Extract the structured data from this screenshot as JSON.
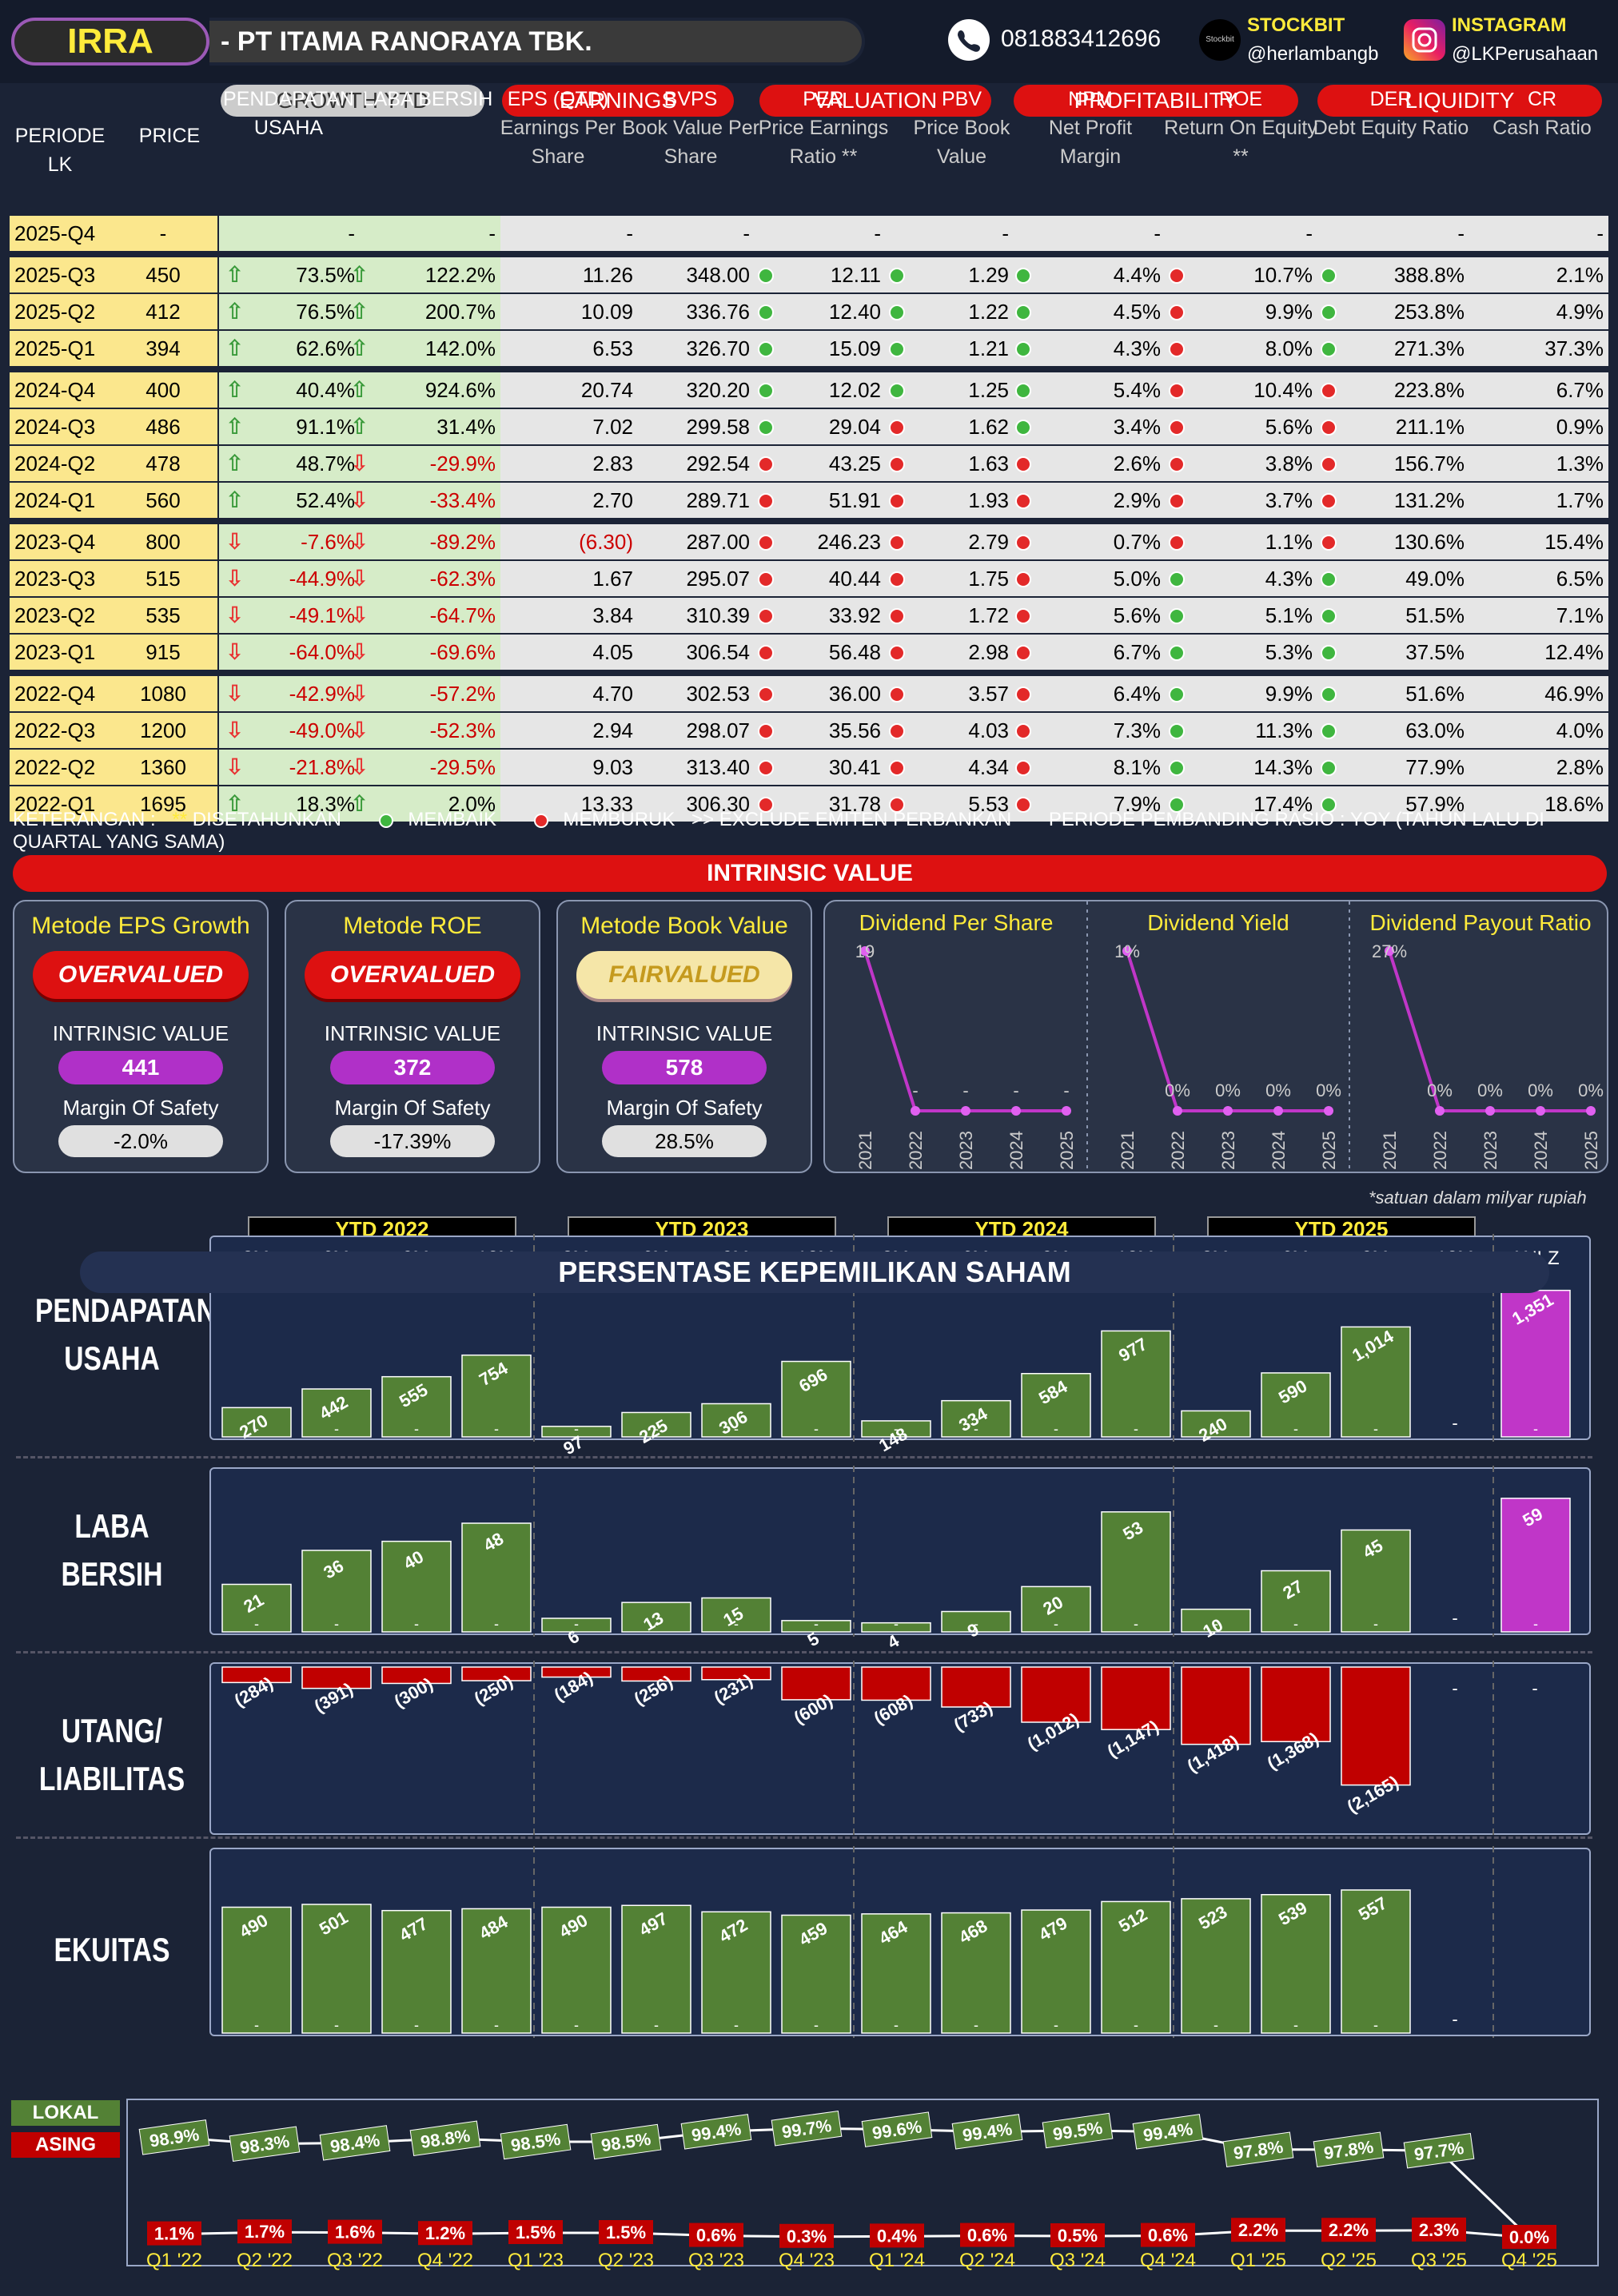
{
  "header": {
    "ticker": "IRRA",
    "company": "-  PT ITAMA RANORAYA TBK.",
    "phone": "081883412696",
    "stockbit_label": "STOCKBIT",
    "stockbit_handle": "@herlambangb",
    "stockbit_logo_text": "Stockbit",
    "instagram_label": "INSTAGRAM",
    "instagram_handle": "@LKPerusahaan"
  },
  "table": {
    "groups": {
      "growth": "GROWTH YTD",
      "earnings": "EARNINGS",
      "valuation": "VALUATION",
      "profitability": "PROFITABILITY",
      "liquidity": "LIQUIDITY"
    },
    "cols": {
      "periode": "PERIODE LK",
      "price": "PRICE",
      "pend": "PENDAPATAN USAHA",
      "laba": "LABA BERSIH",
      "eps": "EPS (QTD)",
      "eps_sub": "Earnings Per Share",
      "bvps": "BVPS",
      "bvps_sub": "Book Value Per Share",
      "per": "PER",
      "per_sub": "Price Earnings Ratio **",
      "pbv": "PBV",
      "pbv_sub": "Price Book Value",
      "npm": "NPM",
      "npm_sub": "Net Profit Margin",
      "roe": "ROE",
      "roe_sub": "Return On Equity **",
      "der": "DER",
      "der_sub": "Debt Equity Ratio",
      "cr": "CR",
      "cr_sub": "Cash Ratio"
    },
    "rows": [
      {
        "p": "2025-Q4",
        "price": "-",
        "pend": "-",
        "laba": "-",
        "eps": "-",
        "bvps": "-",
        "per": "-",
        "pbv": "-",
        "npm": "-",
        "roe": "-",
        "der": "-",
        "cr": "-"
      },
      {
        "p": "2025-Q3",
        "price": "450",
        "pend": "73.5%",
        "pa": "up",
        "laba": "122.2%",
        "la": "up",
        "eps": "11.26",
        "bvps": "348.00",
        "per": "12.11",
        "pd": "g",
        "pbv": "1.29",
        "bd": "g",
        "npm": "4.4%",
        "nd": "g",
        "roe": "10.7%",
        "rd": "r",
        "der": "388.8%",
        "dd": "g",
        "cr": "2.1%"
      },
      {
        "p": "2025-Q2",
        "price": "412",
        "pend": "76.5%",
        "pa": "up",
        "laba": "200.7%",
        "la": "up",
        "eps": "10.09",
        "bvps": "336.76",
        "per": "12.40",
        "pd": "g",
        "pbv": "1.22",
        "bd": "g",
        "npm": "4.5%",
        "nd": "g",
        "roe": "9.9%",
        "rd": "r",
        "der": "253.8%",
        "dd": "g",
        "cr": "4.9%"
      },
      {
        "p": "2025-Q1",
        "price": "394",
        "pend": "62.6%",
        "pa": "up",
        "laba": "142.0%",
        "la": "up",
        "eps": "6.53",
        "bvps": "326.70",
        "per": "15.09",
        "pd": "g",
        "pbv": "1.21",
        "bd": "g",
        "npm": "4.3%",
        "nd": "g",
        "roe": "8.0%",
        "rd": "r",
        "der": "271.3%",
        "dd": "g",
        "cr": "37.3%"
      },
      {
        "p": "2024-Q4",
        "price": "400",
        "pend": "40.4%",
        "pa": "up",
        "laba": "924.6%",
        "la": "up",
        "eps": "20.74",
        "bvps": "320.20",
        "per": "12.02",
        "pd": "g",
        "pbv": "1.25",
        "bd": "g",
        "npm": "5.4%",
        "nd": "g",
        "roe": "10.4%",
        "rd": "r",
        "der": "223.8%",
        "dd": "r",
        "cr": "6.7%"
      },
      {
        "p": "2024-Q3",
        "price": "486",
        "pend": "91.1%",
        "pa": "up",
        "laba": "31.4%",
        "la": "up",
        "eps": "7.02",
        "bvps": "299.58",
        "per": "29.04",
        "pd": "g",
        "pbv": "1.62",
        "bd": "r",
        "npm": "3.4%",
        "nd": "g",
        "roe": "5.6%",
        "rd": "r",
        "der": "211.1%",
        "dd": "r",
        "cr": "0.9%"
      },
      {
        "p": "2024-Q2",
        "price": "478",
        "pend": "48.7%",
        "pa": "up",
        "laba": "-29.9%",
        "la": "dn",
        "eps": "2.83",
        "bvps": "292.54",
        "per": "43.25",
        "pd": "r",
        "pbv": "1.63",
        "bd": "r",
        "npm": "2.6%",
        "nd": "r",
        "roe": "3.8%",
        "rd": "r",
        "der": "156.7%",
        "dd": "r",
        "cr": "1.3%"
      },
      {
        "p": "2024-Q1",
        "price": "560",
        "pend": "52.4%",
        "pa": "up",
        "laba": "-33.4%",
        "la": "dn",
        "eps": "2.70",
        "bvps": "289.71",
        "per": "51.91",
        "pd": "r",
        "pbv": "1.93",
        "bd": "r",
        "npm": "2.9%",
        "nd": "r",
        "roe": "3.7%",
        "rd": "r",
        "der": "131.2%",
        "dd": "r",
        "cr": "1.7%"
      },
      {
        "p": "2023-Q4",
        "price": "800",
        "pend": "-7.6%",
        "pa": "dn",
        "laba": "-89.2%",
        "la": "dn",
        "eps": "(6.30)",
        "neg": true,
        "bvps": "287.00",
        "per": "246.23",
        "pd": "r",
        "pbv": "2.79",
        "bd": "r",
        "npm": "0.7%",
        "nd": "r",
        "roe": "1.1%",
        "rd": "r",
        "der": "130.6%",
        "dd": "r",
        "cr": "15.4%"
      },
      {
        "p": "2023-Q3",
        "price": "515",
        "pend": "-44.9%",
        "pa": "dn",
        "laba": "-62.3%",
        "la": "dn",
        "eps": "1.67",
        "bvps": "295.07",
        "per": "40.44",
        "pd": "r",
        "pbv": "1.75",
        "bd": "r",
        "npm": "5.0%",
        "nd": "r",
        "roe": "4.3%",
        "rd": "g",
        "der": "49.0%",
        "dd": "g",
        "cr": "6.5%"
      },
      {
        "p": "2023-Q2",
        "price": "535",
        "pend": "-49.1%",
        "pa": "dn",
        "laba": "-64.7%",
        "la": "dn",
        "eps": "3.84",
        "bvps": "310.39",
        "per": "33.92",
        "pd": "r",
        "pbv": "1.72",
        "bd": "r",
        "npm": "5.6%",
        "nd": "r",
        "roe": "5.1%",
        "rd": "g",
        "der": "51.5%",
        "dd": "g",
        "cr": "7.1%"
      },
      {
        "p": "2023-Q1",
        "price": "915",
        "pend": "-64.0%",
        "pa": "dn",
        "laba": "-69.6%",
        "la": "dn",
        "eps": "4.05",
        "bvps": "306.54",
        "per": "56.48",
        "pd": "r",
        "pbv": "2.98",
        "bd": "r",
        "npm": "6.7%",
        "nd": "r",
        "roe": "5.3%",
        "rd": "g",
        "der": "37.5%",
        "dd": "g",
        "cr": "12.4%"
      },
      {
        "p": "2022-Q4",
        "price": "1080",
        "pend": "-42.9%",
        "pa": "dn",
        "laba": "-57.2%",
        "la": "dn",
        "eps": "4.70",
        "bvps": "302.53",
        "per": "36.00",
        "pd": "r",
        "pbv": "3.57",
        "bd": "r",
        "npm": "6.4%",
        "nd": "r",
        "roe": "9.9%",
        "rd": "g",
        "der": "51.6%",
        "dd": "g",
        "cr": "46.9%"
      },
      {
        "p": "2022-Q3",
        "price": "1200",
        "pend": "-49.0%",
        "pa": "dn",
        "laba": "-52.3%",
        "la": "dn",
        "eps": "2.94",
        "bvps": "298.07",
        "per": "35.56",
        "pd": "r",
        "pbv": "4.03",
        "bd": "r",
        "npm": "7.3%",
        "nd": "r",
        "roe": "11.3%",
        "rd": "g",
        "der": "63.0%",
        "dd": "g",
        "cr": "4.0%"
      },
      {
        "p": "2022-Q2",
        "price": "1360",
        "pend": "-21.8%",
        "pa": "dn",
        "laba": "-29.5%",
        "la": "dn",
        "eps": "9.03",
        "bvps": "313.40",
        "per": "30.41",
        "pd": "r",
        "pbv": "4.34",
        "bd": "r",
        "npm": "8.1%",
        "nd": "r",
        "roe": "14.3%",
        "rd": "g",
        "der": "77.9%",
        "dd": "g",
        "cr": "2.8%"
      },
      {
        "p": "2022-Q1",
        "price": "1695",
        "pend": "18.3%",
        "pa": "up",
        "laba": "2.0%",
        "la": "up",
        "eps": "13.33",
        "bvps": "306.30",
        "per": "31.78",
        "pd": "r",
        "pbv": "5.53",
        "bd": "r",
        "npm": "7.9%",
        "nd": "r",
        "roe": "17.4%",
        "rd": "g",
        "der": "57.9%",
        "dd": "g",
        "cr": "18.6%"
      }
    ]
  },
  "legend": {
    "ket": "KETERANGAN :",
    "star": "**",
    "dis": "DISETAHUNKAN",
    "membaik": "MEMBAIK",
    "memburuk": "MEMBURUK",
    "excl": ">> EXCLUDE EMITEN PERBANKAN",
    "periode": "PERIODE PEMBANDING RASIO : YOY (TAHUN LALU DI QUARTAL YANG SAMA)"
  },
  "intrinsic": {
    "title": "INTRINSIC VALUE",
    "iv_label": "INTRINSIC VALUE",
    "mos_label": "Margin Of Safety",
    "cards": [
      {
        "title": "Metode EPS Growth",
        "status": "OVERVALUED",
        "value": "441",
        "mos": "-2.0%"
      },
      {
        "title": "Metode ROE",
        "status": "OVERVALUED",
        "value": "372",
        "mos": "-17.39%"
      },
      {
        "title": "Metode Book Value",
        "status": "FAIRVALUED",
        "value": "578",
        "mos": "28.5%"
      }
    ]
  },
  "dividends": [
    {
      "title": "Dividend Per Share",
      "years": [
        "2021",
        "2022",
        "2023",
        "2024",
        "2025"
      ],
      "labels": [
        "19",
        "-",
        "-",
        "-",
        "-"
      ],
      "values": [
        19,
        0,
        0,
        0,
        0
      ]
    },
    {
      "title": "Dividend Yield",
      "years": [
        "2021",
        "2022",
        "2023",
        "2024",
        "2025"
      ],
      "labels": [
        "1%",
        "0%",
        "0%",
        "0%",
        "0%"
      ],
      "values": [
        1,
        0,
        0,
        0,
        0
      ]
    },
    {
      "title": "Dividend Payout Ratio",
      "years": [
        "2021",
        "2022",
        "2023",
        "2024",
        "2025"
      ],
      "labels": [
        "27%",
        "0%",
        "0%",
        "0%",
        "0%"
      ],
      "values": [
        27,
        0,
        0,
        0,
        0
      ]
    }
  ],
  "note": "*satuan dalam milyar rupiah",
  "ytd_headers": [
    "YTD 2022",
    "YTD 2023",
    "YTD 2024",
    "YTD 2025"
  ],
  "months": [
    "3M",
    "6M",
    "9M",
    "12M",
    "3M",
    "6M",
    "9M",
    "12M",
    "3M",
    "6M",
    "9M",
    "12M",
    "3M",
    "6M",
    "9M",
    "12M",
    "ANLZ"
  ],
  "colors": {
    "green": "#538135",
    "magenta": "#c036c8",
    "red": "#c00000"
  },
  "chart_data": [
    {
      "type": "bar",
      "name": "PENDAPATAN USAHA",
      "values": [
        270,
        442,
        555,
        754,
        97,
        225,
        306,
        696,
        148,
        334,
        584,
        977,
        240,
        590,
        1014,
        null,
        1351
      ]
    },
    {
      "type": "bar",
      "name": "LABA BERSIH",
      "values": [
        21,
        36,
        40,
        48,
        6,
        13,
        15,
        5,
        4,
        9,
        20,
        53,
        10,
        27,
        45,
        null,
        59
      ]
    },
    {
      "type": "bar",
      "name": "UTANG/ LIABILITAS",
      "values": [
        -284,
        -391,
        -300,
        -250,
        -184,
        -256,
        -231,
        -600,
        -608,
        -733,
        -1012,
        -1147,
        -1418,
        -1368,
        -2165,
        null,
        null
      ]
    },
    {
      "type": "bar",
      "name": "EKUITAS",
      "values": [
        490,
        501,
        477,
        484,
        490,
        497,
        472,
        459,
        464,
        468,
        479,
        512,
        523,
        539,
        557,
        null
      ]
    },
    {
      "type": "line",
      "name": "PERSENTASE KEPEMILIKAN SAHAM",
      "categories": [
        "Q1 '22",
        "Q2 '22",
        "Q3 '22",
        "Q4 '22",
        "Q1 '23",
        "Q2 '23",
        "Q3 '23",
        "Q4 '23",
        "Q1 '24",
        "Q2 '24",
        "Q3 '24",
        "Q4 '24",
        "Q1 '25",
        "Q2 '25",
        "Q3 '25",
        "Q4 '25"
      ],
      "series": [
        {
          "name": "LOKAL",
          "values": [
            98.9,
            98.3,
            98.4,
            98.8,
            98.5,
            98.5,
            99.4,
            99.7,
            99.6,
            99.4,
            99.5,
            99.4,
            97.8,
            97.8,
            97.7,
            null
          ]
        },
        {
          "name": "ASING",
          "values": [
            1.1,
            1.7,
            1.6,
            1.2,
            1.5,
            1.5,
            0.6,
            0.3,
            0.4,
            0.6,
            0.5,
            0.6,
            2.2,
            2.2,
            2.3,
            0.0
          ]
        }
      ]
    }
  ],
  "sections": {
    "pend": "PENDAPATAN USAHA",
    "laba": "LABA BERSIH",
    "utang": "UTANG/ LIABILITAS",
    "ekuitas": "EKUITAS",
    "kepemilikan": "PERSENTASE KEPEMILIKAN SAHAM"
  }
}
